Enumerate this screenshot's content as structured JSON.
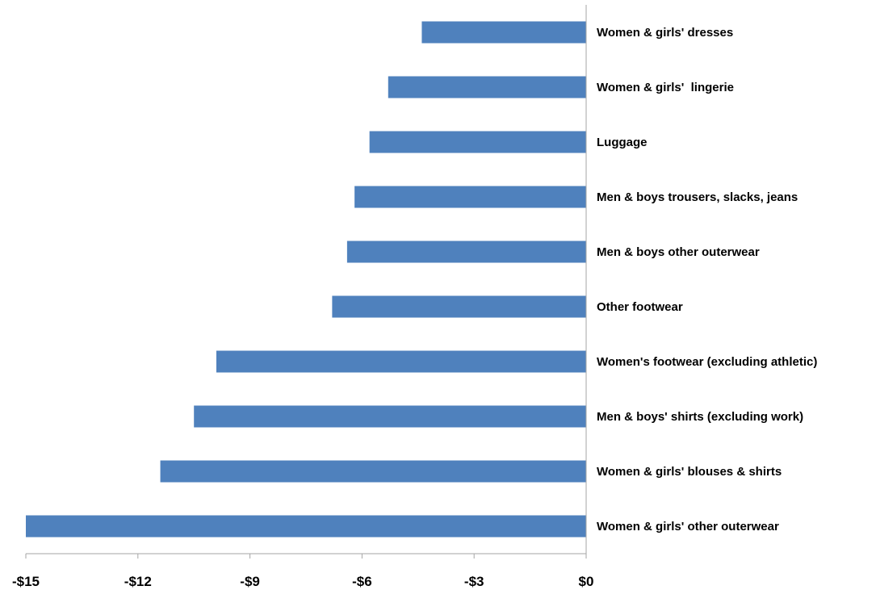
{
  "chart_data": {
    "type": "bar",
    "orientation": "horizontal",
    "categories": [
      "Women & girls' dresses",
      "Women & girls'  lingerie",
      "Luggage",
      "Men & boys trousers, slacks, jeans",
      "Men & boys other outerwear",
      "Other footwear",
      "Women's footwear (excluding athletic)",
      "Men & boys' shirts (excluding work)",
      "Women & girls' blouses & shirts",
      "Women & girls' other outerwear"
    ],
    "values": [
      -4.4,
      -5.3,
      -5.8,
      -6.2,
      -6.4,
      -6.8,
      -9.9,
      -10.5,
      -11.4,
      -15.0
    ],
    "xlim": [
      -15,
      0
    ],
    "xticks": [
      -15,
      -12,
      -9,
      -6,
      -3,
      0
    ],
    "xtick_labels": [
      "-$15",
      "-$12",
      "-$9",
      "-$6",
      "-$3",
      "$0"
    ],
    "bar_color": "#4F81BD",
    "grid": false
  }
}
